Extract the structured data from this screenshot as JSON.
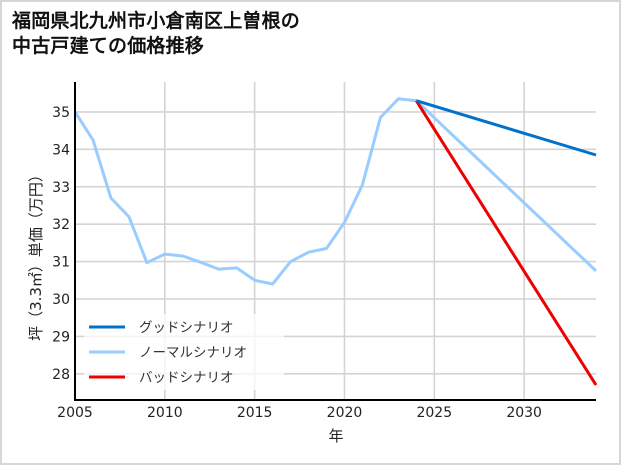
{
  "title": "福岡県北九州市小倉南区上曽根の\n中古戸建ての価格推移",
  "chart_data": {
    "type": "line",
    "title": "福岡県北九州市小倉南区上曽根の中古戸建ての価格推移",
    "xlabel": "年",
    "ylabel": "坪（3.3㎡）単価（万円）",
    "xlim": [
      2005,
      2034
    ],
    "ylim": [
      27.3,
      35.8
    ],
    "x_ticks": [
      2005,
      2010,
      2015,
      2020,
      2025,
      2030
    ],
    "y_ticks": [
      28,
      29,
      30,
      31,
      32,
      33,
      34,
      35
    ],
    "grid": true,
    "legend_position": "lower left",
    "series": [
      {
        "name": "グッドシナリオ",
        "color": "#0072cc",
        "x": [
          2024,
          2034
        ],
        "values": [
          35.3,
          33.85
        ]
      },
      {
        "name": "ノーマルシナリオ",
        "color": "#99ccff",
        "x": [
          2005,
          2006,
          2007,
          2008,
          2009,
          2010,
          2011,
          2012,
          2013,
          2014,
          2015,
          2016,
          2017,
          2018,
          2019,
          2020,
          2021,
          2022,
          2023,
          2024,
          2034
        ],
        "values": [
          35.0,
          34.25,
          32.7,
          32.2,
          30.97,
          31.2,
          31.15,
          30.98,
          30.8,
          30.83,
          30.5,
          30.4,
          31.0,
          31.25,
          31.35,
          32.05,
          33.05,
          34.85,
          35.35,
          35.3,
          30.75
        ]
      },
      {
        "name": "バッドシナリオ",
        "color": "#ee0000",
        "x": [
          2024,
          2034
        ],
        "values": [
          35.3,
          27.7
        ]
      }
    ]
  }
}
